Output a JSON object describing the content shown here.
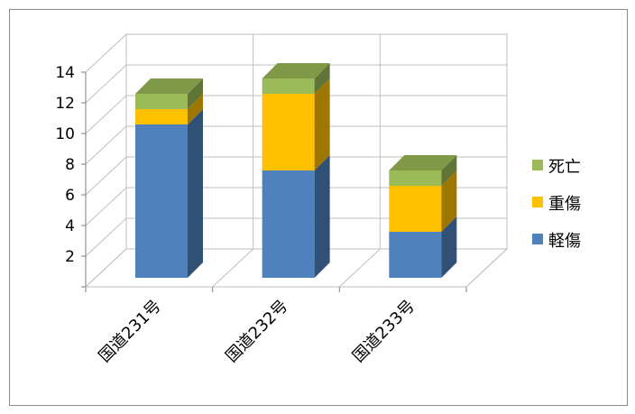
{
  "chart_data": {
    "type": "bar",
    "stacked": true,
    "three_d": true,
    "categories": [
      "国道231号",
      "国道232号",
      "国道233号"
    ],
    "series": [
      {
        "name": "軽傷",
        "values": [
          10,
          7,
          3
        ],
        "color": "#4F81BD"
      },
      {
        "name": "重傷",
        "values": [
          1,
          5,
          3
        ],
        "color": "#FFC000"
      },
      {
        "name": "死亡",
        "values": [
          1,
          1,
          1
        ],
        "color": "#9BBB59"
      }
    ],
    "ylim": [
      0,
      14
    ],
    "yticks": [
      "",
      "2",
      "4",
      "6",
      "8",
      "10",
      "12",
      "14"
    ],
    "grid": true,
    "legend": "right",
    "legend_order": [
      "死亡",
      "重傷",
      "軽傷"
    ]
  }
}
